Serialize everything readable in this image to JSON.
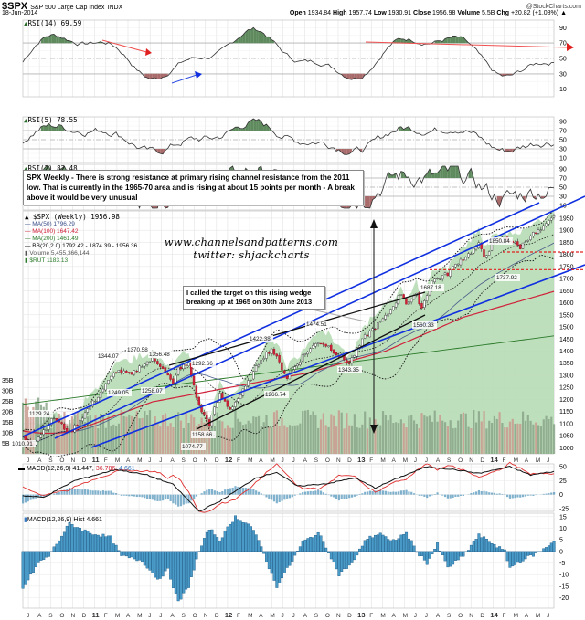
{
  "header": {
    "symbol": "$SPX",
    "name": "S&P 500 Large Cap Index",
    "exchange": "INDX",
    "date": "18-Jun-2014",
    "site": "@StockCharts.com",
    "open_label": "Open",
    "open": "1934.84",
    "high_label": "High",
    "high": "1957.74",
    "low_label": "Low",
    "low": "1930.91",
    "close_label": "Close",
    "close": "1956.98",
    "volume_label": "Volume",
    "volume": "5.5B",
    "chg_label": "Chg",
    "chg": "+20.82 (+1.08%)"
  },
  "panels": {
    "rsi14": {
      "label": "RSI(14) 69.59",
      "ticks": [
        "90",
        "70",
        "50",
        "30",
        "10"
      ]
    },
    "rsi5": {
      "label": "RSI(5) 78.55",
      "ticks": [
        "90",
        "70",
        "50",
        "30",
        "10"
      ]
    },
    "rsi2": {
      "label": "RSI(2) 82.48",
      "ticks": [
        "90",
        "70",
        "50",
        "30",
        "10"
      ]
    },
    "price": {
      "legend": [
        {
          "text": "$SPX (Weekly) 1956.98",
          "color": "#000000"
        },
        {
          "text": "MA(50) 1796.29",
          "color": "#3a4f8a"
        },
        {
          "text": "MA(100) 1647.42",
          "color": "#d0213a"
        },
        {
          "text": "MA(200) 1461.49",
          "color": "#2a7a2a"
        },
        {
          "text": "BB(20,2.0) 1792.42 - 1874.39 - 1956.36",
          "color": "#000000"
        },
        {
          "text": "Volume 5,455,366,144",
          "color": "#555555"
        },
        {
          "text": "$RUT 1183.13",
          "color": "#2a7a2a"
        }
      ],
      "price_ticks": [
        "1950",
        "1900",
        "1850",
        "1800",
        "1750",
        "1700",
        "1650",
        "1600",
        "1550",
        "1500",
        "1450",
        "1400",
        "1350",
        "1300",
        "1250",
        "1200",
        "1150",
        "1100",
        "1050",
        "1000"
      ],
      "volume_ticks": [
        "35B",
        "30B",
        "25B",
        "20B",
        "15B",
        "10B",
        "5B"
      ],
      "annotations": [
        "1010.91",
        "1129.24",
        "1344.07",
        "1370.58",
        "1356.48",
        "1249.05",
        "1258.07",
        "1292.66",
        "1158.66",
        "1074.77",
        "1422.38",
        "1474.51",
        "1266.74",
        "1343.35",
        "1687.18",
        "1560.33",
        "1850.84",
        "1737.92"
      ]
    },
    "macd": {
      "label": "MACD(12,26,9) 41.447, 36.786, 4.661",
      "label_main": "MACD(12,26,9) 41.447,",
      "label_signal": " 36.786,",
      "label_hist": " 4.661",
      "ticks": [
        "50",
        "25",
        "0",
        "-25"
      ]
    },
    "macd_hist": {
      "label": "MACD(12,26,9) Hist 4.661",
      "ticks": [
        "15",
        "10",
        "5",
        "0",
        "-5",
        "-10",
        "-15",
        "-20"
      ]
    }
  },
  "months": [
    "J",
    "A",
    "S",
    "O",
    "N",
    "D",
    "11",
    "F",
    "M",
    "A",
    "M",
    "J",
    "J",
    "A",
    "S",
    "O",
    "N",
    "D",
    "12",
    "F",
    "M",
    "A",
    "M",
    "J",
    "J",
    "A",
    "S",
    "O",
    "N",
    "D",
    "13",
    "F",
    "M",
    "A",
    "M",
    "J",
    "J",
    "A",
    "S",
    "O",
    "N",
    "D",
    "14",
    "F",
    "M",
    "A",
    "M",
    "J"
  ],
  "notes": {
    "main": "SPX Weekly - There is strong resistance at primary rising channel resistance from the 2011 low. That is currently in the 1965-70 area and is rising at about 15 points per month - A break above it would be very unusual",
    "wedge": "I called the target on this rising wedge breaking up at 1965 on 30th June 2013"
  },
  "watermark": {
    "line1": "www.channelsandpatterns.com",
    "line2": "twitter: shjackcharts"
  },
  "chart_data": {
    "type": "line",
    "title": "$SPX S&P 500 Large Cap Index (Weekly)",
    "xlabel": "",
    "ylabel": "Price",
    "x_range": [
      "Jul 2010",
      "Jun 2014"
    ],
    "ylim": [
      1000,
      1980
    ],
    "grid": true,
    "legend_position": "top-left",
    "series": [
      {
        "name": "$SPX (Weekly)",
        "last": 1956.98,
        "swing_points": [
          {
            "x": "Jul 2010",
            "y": 1010.91
          },
          {
            "x": "Oct 2010",
            "y": 1129.24
          },
          {
            "x": "Feb 2011",
            "y": 1344.07
          },
          {
            "x": "Apr 2011",
            "y": 1370.58
          },
          {
            "x": "Mar 2011",
            "y": 1249.05
          },
          {
            "x": "Jun 2011",
            "y": 1258.07
          },
          {
            "x": "Jul 2011",
            "y": 1356.48
          },
          {
            "x": "Oct 2011",
            "y": 1074.77
          },
          {
            "x": "Oct 2011",
            "y": 1292.66
          },
          {
            "x": "Nov 2011",
            "y": 1158.66
          },
          {
            "x": "Apr 2012",
            "y": 1422.38
          },
          {
            "x": "Jun 2012",
            "y": 1266.74
          },
          {
            "x": "Sep 2012",
            "y": 1474.51
          },
          {
            "x": "Nov 2012",
            "y": 1343.35
          },
          {
            "x": "May 2013",
            "y": 1687.18
          },
          {
            "x": "Jun 2013",
            "y": 1560.33
          },
          {
            "x": "Jan 2014",
            "y": 1850.84
          },
          {
            "x": "Feb 2014",
            "y": 1737.92
          },
          {
            "x": "Jun 2014",
            "y": 1956.98
          }
        ]
      },
      {
        "name": "MA(50)",
        "last": 1796.29
      },
      {
        "name": "MA(100)",
        "last": 1647.42
      },
      {
        "name": "MA(200)",
        "last": 1461.49
      },
      {
        "name": "BB(20,2.0) lower/mid/upper",
        "values": [
          1792.42,
          1874.39,
          1956.36
        ]
      },
      {
        "name": "Volume",
        "last": 5455366144
      },
      {
        "name": "$RUT",
        "last": 1183.13
      }
    ],
    "indicators": {
      "RSI(14)": {
        "last": 69.59,
        "range": [
          0,
          100
        ],
        "levels": [
          70,
          50,
          30
        ]
      },
      "RSI(5)": {
        "last": 78.55,
        "range": [
          0,
          100
        ],
        "levels": [
          70,
          50,
          30
        ]
      },
      "RSI(2)": {
        "last": 82.48,
        "range": [
          0,
          100
        ],
        "levels": [
          70,
          50,
          30
        ]
      },
      "MACD(12,26,9)": {
        "macd": 41.447,
        "signal": 36.786,
        "hist": 4.661,
        "ylim": [
          -30,
          55
        ]
      },
      "MACD Hist": {
        "last": 4.661,
        "ylim": [
          -24,
          16
        ]
      }
    },
    "horizontal_levels": [
      1810,
      1737
    ],
    "annotations": [
      "Rising channel (blue) from 2011 low",
      "Rising wedge 2012-2013 (black)",
      "Resistance 1965-70"
    ]
  }
}
